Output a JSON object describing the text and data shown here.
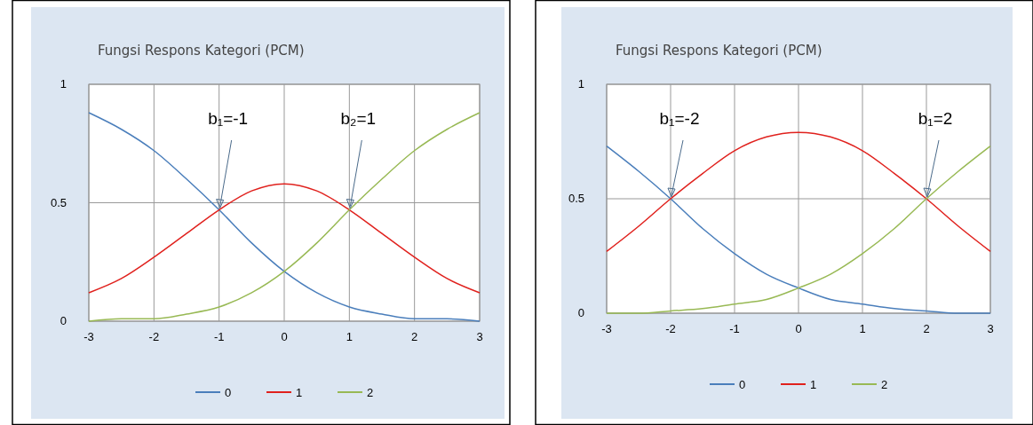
{
  "chart_data": [
    {
      "type": "line",
      "title": "Fungsi Respons Kategori (PCM)",
      "x": [
        -3,
        -2.5,
        -2,
        -1.5,
        -1,
        -0.5,
        0,
        0.5,
        1,
        1.5,
        2,
        2.5,
        3
      ],
      "series": [
        {
          "name": "0",
          "color": "#4a7ebb",
          "values": [
            0.88,
            0.81,
            0.72,
            0.6,
            0.47,
            0.33,
            0.21,
            0.12,
            0.06,
            0.03,
            0.01,
            0.01,
            0
          ]
        },
        {
          "name": "1",
          "color": "#e0211d",
          "values": [
            0.12,
            0.18,
            0.27,
            0.37,
            0.47,
            0.55,
            0.58,
            0.55,
            0.47,
            0.37,
            0.27,
            0.18,
            0.12
          ]
        },
        {
          "name": "2",
          "color": "#98b954",
          "values": [
            0,
            0.01,
            0.01,
            0.03,
            0.06,
            0.12,
            0.21,
            0.33,
            0.47,
            0.6,
            0.72,
            0.81,
            0.88
          ]
        }
      ],
      "xlim": [
        -3,
        3
      ],
      "xticks": [
        -3,
        -2,
        -1,
        0,
        1,
        2,
        3
      ],
      "ylim": [
        0,
        1
      ],
      "yticks": [
        0,
        0.5,
        1
      ],
      "grid": true,
      "legend": "bottom",
      "marker": "none",
      "annotations": [
        {
          "text": "b₁=-1",
          "x": -1,
          "y": 0.47
        },
        {
          "text": "b₂=1",
          "x": 1,
          "y": 0.47
        }
      ]
    },
    {
      "type": "line",
      "title": "Fungsi Respons Kategori (PCM)",
      "x": [
        -3,
        -2.5,
        -2,
        -1.5,
        -1,
        -0.5,
        0,
        0.5,
        1,
        1.5,
        2,
        2.5,
        3
      ],
      "series": [
        {
          "name": "0",
          "color": "#4a7ebb",
          "values": [
            0.73,
            0.62,
            0.5,
            0.37,
            0.26,
            0.17,
            0.11,
            0.06,
            0.04,
            0.02,
            0.01,
            0,
            0
          ]
        },
        {
          "name": "1",
          "color": "#e0211d",
          "values": [
            0.27,
            0.38,
            0.5,
            0.61,
            0.71,
            0.77,
            0.79,
            0.77,
            0.71,
            0.61,
            0.5,
            0.38,
            0.27
          ]
        },
        {
          "name": "2",
          "color": "#98b954",
          "values": [
            0,
            0,
            0.01,
            0.02,
            0.04,
            0.06,
            0.11,
            0.17,
            0.26,
            0.37,
            0.5,
            0.62,
            0.73
          ]
        }
      ],
      "xlim": [
        -3,
        3
      ],
      "xticks": [
        -3,
        -2,
        -1,
        0,
        1,
        2,
        3
      ],
      "ylim": [
        0,
        1
      ],
      "yticks": [
        0,
        0.5,
        1
      ],
      "grid": true,
      "legend": "bottom",
      "marker": "none",
      "annotations": [
        {
          "text": "b₁=-2",
          "x": -2,
          "y": 0.5
        },
        {
          "text": "b₁=2",
          "x": 2,
          "y": 0.5
        }
      ]
    }
  ]
}
